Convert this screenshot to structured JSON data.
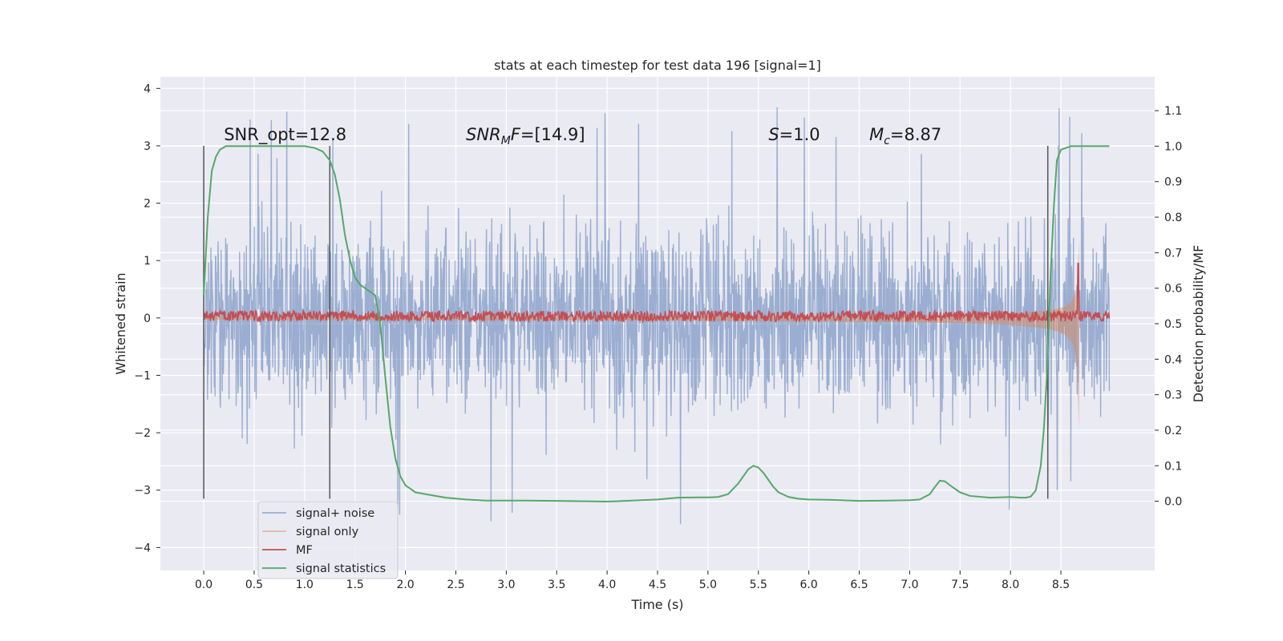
{
  "chart_data": {
    "type": "line",
    "title": "stats at each timestep for test data 196 [signal=1]",
    "xlabel": "Time (s)",
    "ylabel_left": "Whitened strain",
    "ylabel_right": "Detection probability/MF",
    "xlim": [
      -0.43,
      9.43
    ],
    "ylim_left": [
      -4.4,
      4.2
    ],
    "ylim_right": [
      -0.195,
      1.195
    ],
    "x_ticks": [
      0.0,
      0.5,
      1.0,
      1.5,
      2.0,
      2.5,
      3.0,
      3.5,
      4.0,
      4.5,
      5.0,
      5.5,
      6.0,
      6.5,
      7.0,
      7.5,
      8.0,
      8.5
    ],
    "x_tick_labels": [
      "0.0",
      "0.5",
      "1.0",
      "1.5",
      "2.0",
      "2.5",
      "3.0",
      "3.5",
      "4.0",
      "4.5",
      "5.0",
      "5.5",
      "6.0",
      "6.5",
      "7.0",
      "7.5",
      "8.0",
      "8.5"
    ],
    "y_left_ticks": [
      -4,
      -3,
      -2,
      -1,
      0,
      1,
      2,
      3,
      4
    ],
    "y_left_tick_labels": [
      "−4",
      "−3",
      "−2",
      "−1",
      "0",
      "1",
      "2",
      "3",
      "4"
    ],
    "y_right_ticks": [
      0.0,
      0.1,
      0.2,
      0.3,
      0.4,
      0.5,
      0.6,
      0.7,
      0.8,
      0.9,
      1.0,
      1.1
    ],
    "y_right_tick_labels": [
      "0.0",
      "0.1",
      "0.2",
      "0.3",
      "0.4",
      "0.5",
      "0.6",
      "0.7",
      "0.8",
      "0.9",
      "1.0",
      "1.1"
    ],
    "annotations": [
      {
        "text": "SNR_opt=12.8",
        "x": 0.2,
        "y": 3.1
      },
      {
        "text": "SNR_MF=[14.9]",
        "prefix_italic": "SNR",
        "sub": "M",
        "suffix_italic": "F",
        "value": "=[14.9]",
        "x": 2.6,
        "y": 3.1
      },
      {
        "text": "S=1.0",
        "italic": "S",
        "value": "=1.0",
        "x": 5.6,
        "y": 3.1
      },
      {
        "text": "Mc=8.87",
        "italic": "M",
        "sub": "c",
        "value": "=8.87",
        "x": 6.6,
        "y": 3.1
      }
    ],
    "vertical_lines": [
      0.0,
      1.25,
      8.37
    ],
    "vertical_line_range": [
      -3.15,
      3.0
    ],
    "series": [
      {
        "name": "signal+ noise",
        "color": "#4c72b0",
        "axis": "left",
        "style": "dense-noise",
        "amplitude_typical": 1.8,
        "amplitude_peak": 3.85,
        "x_range": [
          0.0,
          8.98
        ]
      },
      {
        "name": "signal only",
        "color": "#dd8452",
        "axis": "left",
        "style": "chirp",
        "t_merge": 8.68,
        "peak_amplitude": 1.35,
        "x_range": [
          0.0,
          8.7
        ]
      },
      {
        "name": "MF",
        "color": "#c44e52",
        "axis": "right",
        "style": "noisy-flat",
        "baseline": 0.52,
        "spike_x": 8.67,
        "spike_value": 0.67,
        "x_range": [
          0.0,
          8.98
        ]
      },
      {
        "name": "signal statistics",
        "color": "#55a868",
        "axis": "right",
        "style": "line",
        "x": [
          0.0,
          0.04,
          0.08,
          0.12,
          0.16,
          0.22,
          0.3,
          0.5,
          0.8,
          1.0,
          1.1,
          1.18,
          1.25,
          1.3,
          1.35,
          1.4,
          1.45,
          1.5,
          1.55,
          1.6,
          1.7,
          1.75,
          1.8,
          1.85,
          1.9,
          1.95,
          2.0,
          2.05,
          2.1,
          2.2,
          2.4,
          2.6,
          2.8,
          3.0,
          3.2,
          3.5,
          3.8,
          4.0,
          4.5,
          4.7,
          4.9,
          5.0,
          5.1,
          5.2,
          5.3,
          5.4,
          5.45,
          5.5,
          5.55,
          5.6,
          5.65,
          5.7,
          5.8,
          5.9,
          6.0,
          6.2,
          6.5,
          6.8,
          7.0,
          7.1,
          7.2,
          7.25,
          7.3,
          7.35,
          7.4,
          7.5,
          7.6,
          7.8,
          8.0,
          8.1,
          8.15,
          8.2,
          8.25,
          8.3,
          8.33,
          8.36,
          8.38,
          8.4,
          8.43,
          8.46,
          8.5,
          8.6,
          8.7,
          8.8,
          8.98
        ],
        "y": [
          0.58,
          0.8,
          0.93,
          0.97,
          0.99,
          1.0,
          1.0,
          1.0,
          1.0,
          1.0,
          0.995,
          0.985,
          0.96,
          0.92,
          0.85,
          0.75,
          0.68,
          0.63,
          0.61,
          0.6,
          0.58,
          0.5,
          0.35,
          0.21,
          0.12,
          0.07,
          0.045,
          0.035,
          0.025,
          0.02,
          0.01,
          0.005,
          0.002,
          0.002,
          0.002,
          0.001,
          0.0,
          -0.001,
          0.005,
          0.01,
          0.011,
          0.011,
          0.012,
          0.02,
          0.05,
          0.09,
          0.1,
          0.095,
          0.08,
          0.06,
          0.04,
          0.025,
          0.012,
          0.007,
          0.005,
          0.004,
          0.001,
          0.002,
          0.003,
          0.005,
          0.02,
          0.04,
          0.058,
          0.056,
          0.045,
          0.025,
          0.015,
          0.01,
          0.012,
          0.01,
          0.01,
          0.013,
          0.03,
          0.1,
          0.2,
          0.35,
          0.5,
          0.65,
          0.83,
          0.96,
          0.99,
          1.0,
          1.0,
          1.0,
          1.0
        ]
      }
    ],
    "legend": [
      "signal+ noise",
      "signal only",
      "MF",
      "signal statistics"
    ],
    "legend_placement": "lower-left",
    "grid": true
  }
}
